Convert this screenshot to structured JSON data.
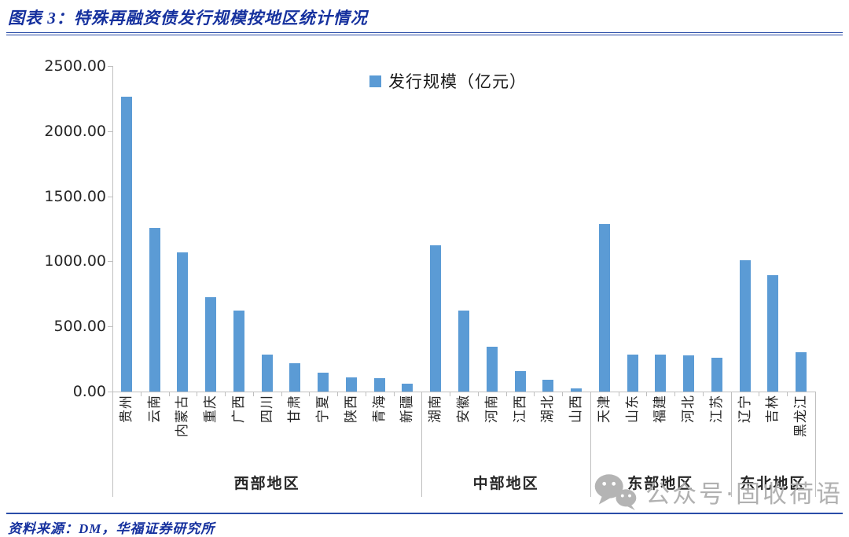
{
  "header": {
    "title": "图表 3：特殊再融资债发行规模按地区统计情况"
  },
  "legend": {
    "label": "发行规模（亿元）"
  },
  "footer": {
    "source": "资料来源：DM，华福证券研究所"
  },
  "watermark": {
    "icon": "wechat-icon",
    "text": "公众号·固收荷语"
  },
  "colors": {
    "bar": "#5B9BD5",
    "title": "#16319E",
    "rule": "#2A4DA8",
    "axis": "#BFBFBF",
    "axis_text": "#262626",
    "watermark": "#ADADAD"
  },
  "chart_data": {
    "type": "bar",
    "title": "特殊再融资债发行规模按地区统计情况",
    "xlabel": "",
    "ylabel": "",
    "ylim": [
      0,
      2500
    ],
    "y_ticks": [
      "0.00",
      "500.00",
      "1000.00",
      "1500.00",
      "2000.00",
      "2500.00"
    ],
    "grid": false,
    "legend_entries": [
      "发行规模（亿元）"
    ],
    "legend_position": "top-center",
    "groups": [
      {
        "region": "西部地区",
        "categories": [
          "贵州",
          "云南",
          "内蒙古",
          "重庆",
          "广西",
          "四川",
          "甘肃",
          "宁夏",
          "陕西",
          "青海",
          "新疆"
        ],
        "values": [
          2264,
          1256,
          1067,
          726,
          623,
          286,
          220,
          144,
          107,
          100,
          62
        ]
      },
      {
        "region": "中部地区",
        "categories": [
          "湖南",
          "安徽",
          "河南",
          "江西",
          "湖北",
          "山西"
        ],
        "values": [
          1122,
          620,
          345,
          156,
          92,
          25
        ]
      },
      {
        "region": "东部地区",
        "categories": [
          "天津",
          "山东",
          "福建",
          "河北",
          "江苏"
        ],
        "values": [
          1286,
          283,
          281,
          277,
          260
        ]
      },
      {
        "region": "东北地区",
        "categories": [
          "辽宁",
          "吉林",
          "黑龙江"
        ],
        "values": [
          1007,
          892,
          303
        ]
      }
    ]
  }
}
